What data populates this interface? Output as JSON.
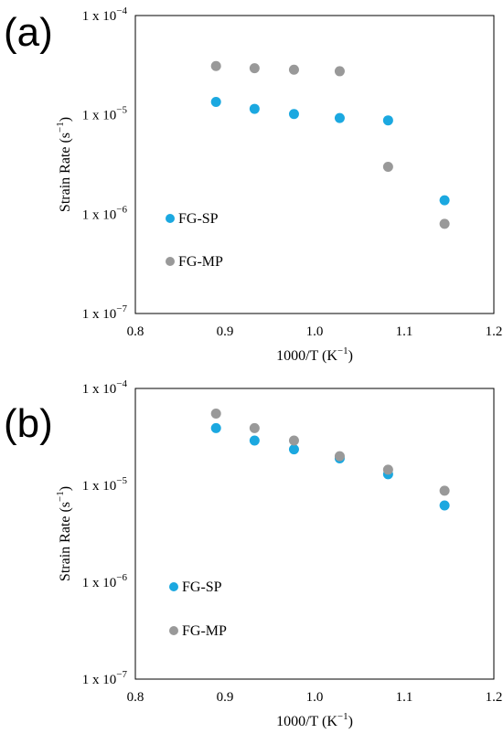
{
  "chart_data": [
    {
      "type": "scatter",
      "panel_label": "(a)",
      "xlabel_base": "1000/T (K",
      "xlabel_sup": "−1",
      "xlabel_end": ")",
      "ylabel_base": "Strain Rate (s",
      "ylabel_sup": "−1",
      "ylabel_end": ")",
      "xlim": [
        0.8,
        1.2
      ],
      "ylim": [
        1e-07,
        0.0001
      ],
      "yscale": "log",
      "grid": false,
      "legend_position": "lower-left",
      "x_ticks": [
        "0.8",
        "0.9",
        "1.0",
        "1.1",
        "1.2"
      ],
      "y_ticks": [
        {
          "mantissa": "1 x 10",
          "exp": "−4"
        },
        {
          "mantissa": "1 x 10",
          "exp": "−5"
        },
        {
          "mantissa": "1 x 10",
          "exp": "−6"
        },
        {
          "mantissa": "1 x 10",
          "exp": "−7"
        }
      ],
      "series": [
        {
          "name": "FG-SP",
          "color": "#1ba8e0",
          "x": [
            0.89,
            0.933,
            0.977,
            1.028,
            1.082,
            1.145
          ],
          "y": [
            1.35e-05,
            1.15e-05,
            1.02e-05,
            9.3e-06,
            8.8e-06,
            1.38e-06
          ]
        },
        {
          "name": "FG-MP",
          "color": "#999999",
          "x": [
            0.89,
            0.933,
            0.977,
            1.028,
            1.082,
            1.145
          ],
          "y": [
            3.1e-05,
            2.95e-05,
            2.85e-05,
            2.75e-05,
            3e-06,
            8e-07
          ]
        }
      ]
    },
    {
      "type": "scatter",
      "panel_label": "(b)",
      "xlabel_base": "1000/T (K",
      "xlabel_sup": "−1",
      "xlabel_end": ")",
      "ylabel_base": "Strain Rate (s",
      "ylabel_sup": "−1",
      "ylabel_end": ")",
      "xlim": [
        0.8,
        1.2
      ],
      "ylim": [
        1e-07,
        0.0001
      ],
      "yscale": "log",
      "grid": false,
      "legend_position": "lower-left",
      "x_ticks": [
        "0.8",
        "0.9",
        "1.0",
        "1.1",
        "1.2"
      ],
      "y_ticks": [
        {
          "mantissa": "1 x 10",
          "exp": "−4"
        },
        {
          "mantissa": "1 x 10",
          "exp": "−5"
        },
        {
          "mantissa": "1 x 10",
          "exp": "−6"
        },
        {
          "mantissa": "1 x 10",
          "exp": "−7"
        }
      ],
      "series": [
        {
          "name": "FG-SP",
          "color": "#1ba8e0",
          "x": [
            0.89,
            0.933,
            0.977,
            1.028,
            1.082,
            1.145
          ],
          "y": [
            3.9e-05,
            2.9e-05,
            2.35e-05,
            1.9e-05,
            1.3e-05,
            6.2e-06
          ]
        },
        {
          "name": "FG-MP",
          "color": "#999999",
          "x": [
            0.89,
            0.933,
            0.977,
            1.028,
            1.082,
            1.145
          ],
          "y": [
            5.5e-05,
            3.9e-05,
            2.9e-05,
            2e-05,
            1.45e-05,
            8.8e-06
          ]
        }
      ]
    }
  ]
}
